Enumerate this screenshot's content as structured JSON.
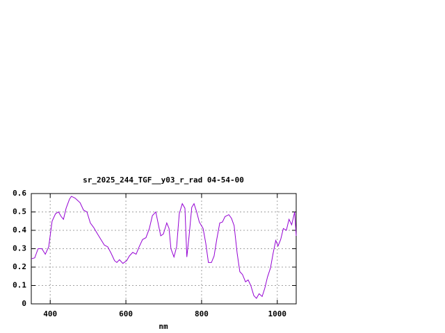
{
  "chart_data": {
    "type": "line",
    "title": "sr_2025_244_TGF__y03_r_rad 04-54-00",
    "x_label": "nm",
    "color": "#9400d3",
    "grid": true,
    "xlim": [
      350,
      1050
    ],
    "xticks": [
      400,
      600,
      800,
      1000
    ],
    "ylim": [
      0,
      0.6
    ],
    "yticks": [
      0,
      0.1,
      0.2,
      0.3,
      0.4,
      0.5,
      0.6
    ],
    "x": [
      350,
      359,
      368,
      378,
      387,
      396,
      405,
      414,
      422,
      429,
      435,
      442,
      451,
      456,
      466,
      479,
      488,
      497,
      506,
      515,
      525,
      534,
      543,
      552,
      561,
      570,
      576,
      583,
      592,
      602,
      609,
      618,
      627,
      635,
      644,
      653,
      662,
      670,
      679,
      686,
      692,
      699,
      708,
      714,
      719,
      727,
      734,
      741,
      749,
      756,
      761,
      767,
      774,
      780,
      787,
      794,
      804,
      811,
      818,
      826,
      833,
      840,
      848,
      855,
      862,
      872,
      879,
      886,
      894,
      901,
      908,
      916,
      923,
      930,
      938,
      945,
      952,
      960,
      967,
      974,
      982,
      989,
      996,
      1002,
      1009,
      1016,
      1024,
      1031,
      1038,
      1046,
      1050
    ],
    "values": [
      0.245,
      0.25,
      0.3,
      0.3,
      0.27,
      0.31,
      0.45,
      0.49,
      0.5,
      0.475,
      0.46,
      0.52,
      0.57,
      0.585,
      0.575,
      0.55,
      0.51,
      0.5,
      0.44,
      0.415,
      0.38,
      0.35,
      0.32,
      0.31,
      0.275,
      0.235,
      0.225,
      0.24,
      0.22,
      0.235,
      0.26,
      0.28,
      0.27,
      0.31,
      0.35,
      0.36,
      0.41,
      0.48,
      0.5,
      0.43,
      0.37,
      0.38,
      0.44,
      0.41,
      0.3,
      0.255,
      0.31,
      0.49,
      0.545,
      0.52,
      0.255,
      0.37,
      0.525,
      0.545,
      0.5,
      0.445,
      0.41,
      0.33,
      0.225,
      0.225,
      0.26,
      0.35,
      0.44,
      0.445,
      0.475,
      0.485,
      0.465,
      0.425,
      0.275,
      0.175,
      0.16,
      0.12,
      0.13,
      0.1,
      0.045,
      0.03,
      0.055,
      0.04,
      0.085,
      0.145,
      0.195,
      0.275,
      0.345,
      0.315,
      0.35,
      0.41,
      0.4,
      0.46,
      0.43,
      0.5,
      0.37
    ]
  }
}
